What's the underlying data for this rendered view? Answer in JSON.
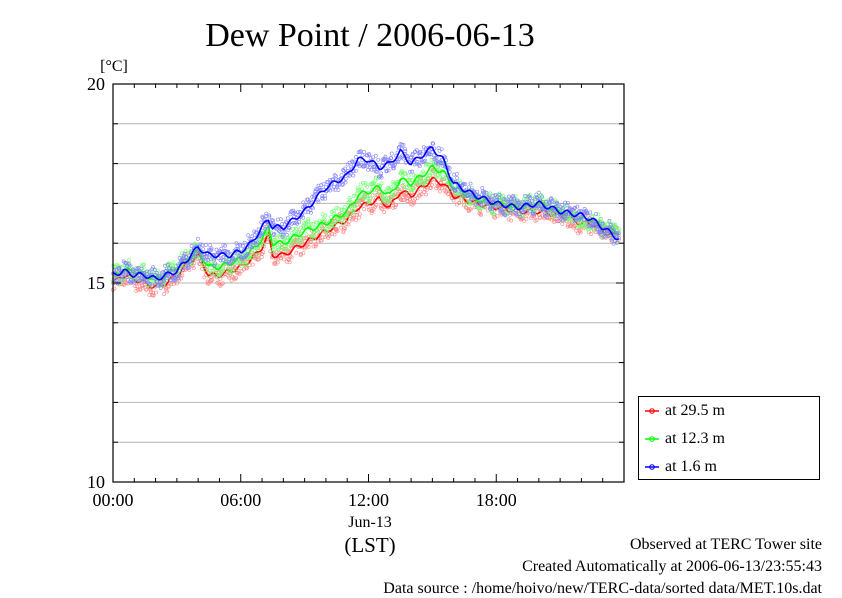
{
  "chart_data": {
    "type": "line",
    "title": "Dew Point / 2006-06-13",
    "ylabel": "[°C]",
    "xlabel": "(LST)",
    "date_label": "Jun-13",
    "ylim": [
      10,
      20
    ],
    "y_ticks": [
      "10",
      "15",
      "20"
    ],
    "x_ticks": [
      {
        "hour": 0,
        "label": "00:00"
      },
      {
        "hour": 6,
        "label": "06:00"
      },
      {
        "hour": 12,
        "label": "12:00"
      },
      {
        "hour": 18,
        "label": "18:00"
      }
    ],
    "xlim_hours": [
      0,
      24
    ],
    "grid": true,
    "legend_position": "bottom-right outside",
    "series": [
      {
        "name": "at 29.5 m",
        "color": "#ff0000",
        "hours": [
          0,
          0.5,
          1,
          1.5,
          2,
          2.5,
          3,
          3.5,
          4,
          4.5,
          5,
          5.5,
          6,
          6.5,
          7,
          7.3,
          7.5,
          8,
          9,
          10,
          11,
          11.5,
          12,
          12.5,
          13,
          13.5,
          14,
          14.5,
          15,
          15.5,
          16,
          17,
          18,
          19,
          20,
          21,
          22,
          22.5,
          23,
          23.5,
          23.8
        ],
        "values": [
          15.0,
          15.2,
          15.1,
          15.0,
          14.9,
          15.0,
          15.2,
          15.5,
          15.7,
          15.2,
          15.2,
          15.3,
          15.4,
          15.6,
          15.9,
          16.2,
          15.7,
          15.7,
          16.0,
          16.3,
          16.6,
          16.9,
          17.0,
          17.1,
          16.9,
          17.3,
          17.2,
          17.4,
          17.6,
          17.5,
          17.2,
          17.0,
          16.9,
          16.8,
          16.8,
          16.7,
          16.5,
          16.5,
          16.3,
          16.2,
          16.3
        ]
      },
      {
        "name": "at 12.3 m",
        "color": "#00ff00",
        "hours": [
          0,
          0.5,
          1,
          1.5,
          2,
          2.5,
          3,
          3.5,
          4,
          4.5,
          5,
          5.5,
          6,
          6.5,
          7,
          7.3,
          7.5,
          8,
          9,
          10,
          11,
          11.5,
          12,
          12.5,
          13,
          13.5,
          14,
          14.5,
          15,
          15.5,
          16,
          17,
          18,
          19,
          20,
          21,
          22,
          22.5,
          23,
          23.5,
          23.8
        ],
        "values": [
          15.2,
          15.3,
          15.3,
          15.2,
          15.1,
          15.2,
          15.4,
          15.6,
          15.8,
          15.4,
          15.4,
          15.5,
          15.6,
          15.8,
          16.1,
          16.4,
          16.0,
          16.0,
          16.3,
          16.5,
          16.8,
          17.2,
          17.3,
          17.4,
          17.2,
          17.6,
          17.5,
          17.7,
          17.9,
          17.8,
          17.4,
          17.1,
          17.0,
          16.9,
          17.0,
          16.8,
          16.6,
          16.6,
          16.4,
          16.3,
          16.3
        ]
      },
      {
        "name": "at 1.6 m",
        "color": "#0000ff",
        "hours": [
          0,
          0.5,
          1,
          1.5,
          2,
          2.5,
          3,
          3.5,
          4,
          4.5,
          5,
          5.5,
          6,
          6.5,
          7,
          7.3,
          7.5,
          8,
          9,
          10,
          11,
          11.5,
          12,
          12.5,
          13,
          13.5,
          14,
          14.5,
          15,
          15.5,
          16,
          17,
          18,
          19,
          20,
          21,
          22,
          22.5,
          23,
          23.5,
          23.8
        ],
        "values": [
          15.2,
          15.3,
          15.2,
          15.2,
          15.1,
          15.2,
          15.3,
          15.6,
          15.9,
          15.7,
          15.7,
          15.7,
          15.8,
          16.0,
          16.4,
          16.6,
          16.4,
          16.4,
          16.8,
          17.4,
          17.7,
          18.1,
          18.1,
          17.9,
          18.0,
          18.3,
          18.0,
          18.2,
          18.4,
          18.1,
          17.5,
          17.2,
          17.0,
          16.9,
          17.0,
          16.8,
          16.7,
          16.6,
          16.4,
          16.2,
          16.1
        ]
      }
    ]
  },
  "footer": {
    "site": "Observed at TERC Tower site",
    "created": "Created Automatically at 2006-06-13/23:55:43",
    "source": "Data source : /home/hoivo/new/TERC-data/sorted  data/MET.10s.dat"
  }
}
